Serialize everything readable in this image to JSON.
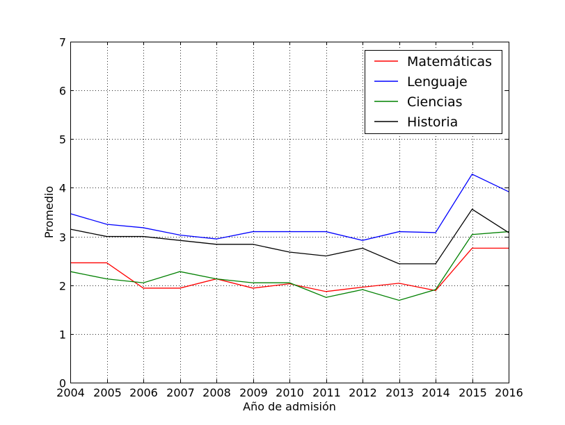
{
  "chart_data": {
    "type": "line",
    "title": "",
    "xlabel": "Año de admisión",
    "ylabel": "Promedio",
    "xlim": [
      2004,
      2016
    ],
    "ylim": [
      0,
      7
    ],
    "xticks": [
      "2004",
      "2005",
      "2006",
      "2007",
      "2008",
      "2009",
      "2010",
      "2011",
      "2012",
      "2013",
      "2014",
      "2015",
      "2016"
    ],
    "yticks": [
      "0",
      "1",
      "2",
      "3",
      "4",
      "5",
      "6",
      "7"
    ],
    "grid": true,
    "legend_position": "top-right",
    "x": [
      2004,
      2005,
      2006,
      2007,
      2008,
      2009,
      2010,
      2011,
      2012,
      2013,
      2014,
      2015,
      2016
    ],
    "series": [
      {
        "name": "Matemáticas",
        "color": "#ff0000",
        "values": [
          2.46,
          2.46,
          1.94,
          1.94,
          2.13,
          1.94,
          2.03,
          1.87,
          1.96,
          2.04,
          1.89,
          2.76,
          2.76
        ]
      },
      {
        "name": "Lenguaje",
        "color": "#0000ff",
        "values": [
          3.47,
          3.25,
          3.18,
          3.03,
          2.95,
          3.1,
          3.1,
          3.1,
          2.92,
          3.1,
          3.08,
          4.28,
          3.92
        ]
      },
      {
        "name": "Ciencias",
        "color": "#008000",
        "values": [
          2.28,
          2.13,
          2.05,
          2.28,
          2.13,
          2.05,
          2.05,
          1.75,
          1.91,
          1.69,
          1.91,
          3.04,
          3.1
        ]
      },
      {
        "name": "Historia",
        "color": "#000000",
        "values": [
          3.15,
          3.0,
          3.0,
          2.92,
          2.84,
          2.84,
          2.68,
          2.6,
          2.76,
          2.44,
          2.44,
          3.56,
          3.08
        ]
      }
    ]
  }
}
